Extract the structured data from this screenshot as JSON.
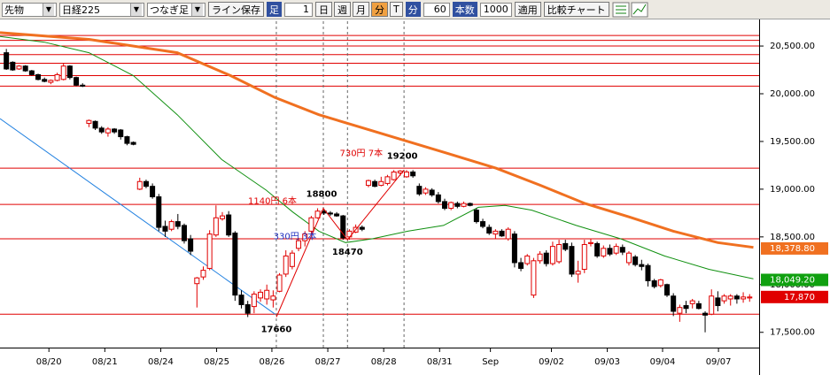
{
  "toolbar": {
    "instrument": "先物",
    "symbol": "日経225",
    "series_type": "つなぎ足",
    "save_button": "ライン保存",
    "bar_label": "足",
    "bar_count": 1,
    "periods": [
      "日",
      "週",
      "月",
      "分",
      "T"
    ],
    "active_period_index": 3,
    "unit_label": "分",
    "unit_value": 60,
    "count_label": "本数",
    "count_value": 1000,
    "apply_button": "適用",
    "compare_button": "比較チャート"
  },
  "chart": {
    "type": "candlestick",
    "up_color": "#e00000",
    "down_color": "#000000",
    "ylim": [
      17340,
      20760
    ],
    "yticks": [
      {
        "value": 20500,
        "label": "20,500.00"
      },
      {
        "value": 20000,
        "label": "20,000.00"
      },
      {
        "value": 19500,
        "label": "19,500.00"
      },
      {
        "value": 19000,
        "label": "19,000.00"
      },
      {
        "value": 18500,
        "label": "18,500.00"
      },
      {
        "value": 18000,
        "label": "18,000.00"
      },
      {
        "value": 17500,
        "label": "17,500.00"
      }
    ],
    "xlim": [
      -1,
      118.5
    ],
    "xticks": [
      {
        "value": 6.7,
        "label": "08/20"
      },
      {
        "value": 15.5,
        "label": "08/21"
      },
      {
        "value": 24.3,
        "label": "08/24"
      },
      {
        "value": 33.1,
        "label": "08/25"
      },
      {
        "value": 41.8,
        "label": "08/26"
      },
      {
        "value": 50.6,
        "label": "08/27"
      },
      {
        "value": 59.4,
        "label": "08/28"
      },
      {
        "value": 68.2,
        "label": "08/31"
      },
      {
        "value": 76.2,
        "label": "Sep"
      },
      {
        "value": 85.8,
        "label": "09/02"
      },
      {
        "value": 94.6,
        "label": "09/03"
      },
      {
        "value": 103.3,
        "label": "09/04"
      },
      {
        "value": 112.1,
        "label": "09/07"
      }
    ],
    "hlines": {
      "color": "#e00000",
      "values": [
        20610,
        20560,
        20500,
        20410,
        20320,
        20190,
        20080,
        19220,
        18840,
        18480,
        17690
      ]
    },
    "candles": [
      [
        20430,
        20470,
        20250,
        20260
      ],
      [
        20330,
        20340,
        20240,
        20250
      ],
      [
        20260,
        20300,
        20250,
        20290
      ],
      [
        20290,
        20300,
        20230,
        20240
      ],
      [
        20240,
        20250,
        20190,
        20200
      ],
      [
        20200,
        20210,
        20140,
        20150
      ],
      [
        20150,
        20170,
        20120,
        20130
      ],
      [
        20120,
        20150,
        20100,
        20140
      ],
      [
        20140,
        20220,
        20130,
        20200
      ],
      [
        20150,
        20320,
        20140,
        20290
      ],
      [
        20290,
        20300,
        20150,
        20170
      ],
      [
        20170,
        20180,
        20080,
        20090
      ],
      [
        20090,
        20110,
        20070,
        20080
      ],
      [
        19690,
        19730,
        19650,
        19720
      ],
      [
        19710,
        19720,
        19620,
        19640
      ],
      [
        19640,
        19660,
        19580,
        19600
      ],
      [
        19590,
        19650,
        19550,
        19630
      ],
      [
        19630,
        19640,
        19580,
        19600
      ],
      [
        19620,
        19630,
        19520,
        19550
      ],
      [
        19550,
        19560,
        19460,
        19480
      ],
      [
        19490,
        19500,
        19460,
        19470
      ],
      [
        19000,
        19120,
        18990,
        19080
      ],
      [
        19080,
        19100,
        19010,
        19030
      ],
      [
        19030,
        19060,
        18900,
        18920
      ],
      [
        18920,
        18950,
        18560,
        18600
      ],
      [
        18610,
        18670,
        18500,
        18560
      ],
      [
        18580,
        18680,
        18560,
        18660
      ],
      [
        18660,
        18740,
        18580,
        18610
      ],
      [
        18620,
        18640,
        18430,
        18460
      ],
      [
        18480,
        18520,
        18310,
        18350
      ],
      [
        18010,
        18080,
        17760,
        18070
      ],
      [
        18080,
        18190,
        18050,
        18150
      ],
      [
        18170,
        18570,
        18150,
        18530
      ],
      [
        18520,
        18830,
        18500,
        18700
      ],
      [
        18690,
        18760,
        18670,
        18720
      ],
      [
        18730,
        18770,
        18500,
        18520
      ],
      [
        18540,
        18560,
        17830,
        17890
      ],
      [
        17890,
        17940,
        17750,
        17790
      ],
      [
        17790,
        17830,
        17660,
        17700
      ],
      [
        17770,
        17930,
        17700,
        17900
      ],
      [
        17860,
        17950,
        17820,
        17920
      ],
      [
        17850,
        18000,
        17790,
        17940
      ],
      [
        17840,
        17940,
        17760,
        17880
      ],
      [
        17930,
        18120,
        17920,
        18100
      ],
      [
        18110,
        18360,
        18080,
        18300
      ],
      [
        18190,
        18360,
        18160,
        18330
      ],
      [
        18380,
        18490,
        18350,
        18460
      ],
      [
        18460,
        18560,
        18400,
        18530
      ],
      [
        18560,
        18720,
        18520,
        18700
      ],
      [
        18700,
        18800,
        18690,
        18770
      ],
      [
        18770,
        18790,
        18730,
        18750
      ],
      [
        18750,
        18770,
        18720,
        18740
      ],
      [
        18740,
        18760,
        18710,
        18720
      ],
      [
        18720,
        18730,
        18470,
        18490
      ],
      [
        18500,
        18580,
        18470,
        18560
      ],
      [
        18550,
        18630,
        18540,
        18600
      ],
      [
        18600,
        18620,
        18560,
        18580
      ],
      [
        19040,
        19100,
        19020,
        19090
      ],
      [
        19080,
        19100,
        19020,
        19030
      ],
      [
        19040,
        19130,
        19030,
        19080
      ],
      [
        19060,
        19150,
        19040,
        19130
      ],
      [
        19100,
        19200,
        19090,
        19180
      ],
      [
        19170,
        19200,
        19140,
        19190
      ],
      [
        19130,
        19200,
        19120,
        19180
      ],
      [
        19180,
        19200,
        19120,
        19140
      ],
      [
        19030,
        19060,
        18930,
        18950
      ],
      [
        18960,
        19020,
        18940,
        19000
      ],
      [
        18990,
        19010,
        18920,
        18940
      ],
      [
        18940,
        18970,
        18850,
        18870
      ],
      [
        18870,
        18900,
        18780,
        18800
      ],
      [
        18800,
        18870,
        18780,
        18860
      ],
      [
        18850,
        18870,
        18800,
        18820
      ],
      [
        18820,
        18870,
        18810,
        18850
      ],
      [
        18850,
        18860,
        18820,
        18830
      ],
      [
        18780,
        18800,
        18640,
        18660
      ],
      [
        18660,
        18690,
        18590,
        18610
      ],
      [
        18600,
        18630,
        18520,
        18540
      ],
      [
        18530,
        18580,
        18480,
        18560
      ],
      [
        18560,
        18580,
        18500,
        18510
      ],
      [
        18480,
        18600,
        18460,
        18580
      ],
      [
        18530,
        18560,
        18180,
        18230
      ],
      [
        18230,
        18280,
        18140,
        18170
      ],
      [
        18220,
        18320,
        18200,
        18300
      ],
      [
        17890,
        18280,
        17860,
        18250
      ],
      [
        18250,
        18350,
        18220,
        18320
      ],
      [
        18330,
        18360,
        18190,
        18220
      ],
      [
        18220,
        18450,
        18200,
        18400
      ],
      [
        18240,
        18470,
        18220,
        18420
      ],
      [
        18430,
        18470,
        18350,
        18370
      ],
      [
        18400,
        18440,
        18080,
        18110
      ],
      [
        18110,
        18250,
        18020,
        18140
      ],
      [
        18160,
        18470,
        18120,
        18420
      ],
      [
        18430,
        18480,
        18400,
        18440
      ],
      [
        18430,
        18450,
        18280,
        18300
      ],
      [
        18300,
        18410,
        18280,
        18380
      ],
      [
        18380,
        18420,
        18300,
        18320
      ],
      [
        18330,
        18430,
        18310,
        18400
      ],
      [
        18390,
        18420,
        18310,
        18340
      ],
      [
        18230,
        18350,
        18200,
        18330
      ],
      [
        18290,
        18310,
        18190,
        18210
      ],
      [
        18210,
        18260,
        18150,
        18190
      ],
      [
        18200,
        18220,
        17980,
        18040
      ],
      [
        18040,
        18060,
        17960,
        17980
      ],
      [
        17990,
        18060,
        17970,
        18050
      ],
      [
        18000,
        18010,
        17870,
        17890
      ],
      [
        17880,
        17910,
        17670,
        17720
      ],
      [
        17700,
        17790,
        17610,
        17760
      ],
      [
        17780,
        17830,
        17700,
        17750
      ],
      [
        17800,
        17850,
        17750,
        17830
      ],
      [
        17800,
        17830,
        17740,
        17750
      ],
      [
        17700,
        17720,
        17500,
        17680
      ],
      [
        17690,
        17950,
        17680,
        17880
      ],
      [
        17860,
        17930,
        17720,
        17780
      ],
      [
        17830,
        17900,
        17800,
        17880
      ],
      [
        17850,
        17900,
        17780,
        17880
      ],
      [
        17880,
        17900,
        17800,
        17850
      ],
      [
        17850,
        17920,
        17810,
        17870
      ],
      [
        17860,
        17900,
        17820,
        17870
      ]
    ],
    "lines": [
      {
        "color": "#f07020",
        "width": 3,
        "x": [
          -1,
          13,
          26.9,
          35.3,
          42.3,
          49.2,
          56.2,
          63.2,
          70.2,
          77.1,
          84.1,
          91.1,
          98,
          105,
          112,
          117.6
        ],
        "values": [
          20640,
          20570,
          20430,
          20190,
          19960,
          19780,
          19640,
          19500,
          19360,
          19220,
          19040,
          18850,
          18710,
          18560,
          18440,
          18390
        ]
      },
      {
        "color": "#109010",
        "width": 1,
        "x": [
          -1,
          6,
          13,
          20,
          26.9,
          33.9,
          40.9,
          45.1,
          49.2,
          53.4,
          57.6,
          63.2,
          68.8,
          74.3,
          78.5,
          82.7,
          89.7,
          96.7,
          103.6,
          110.6,
          117.6
        ],
        "values": [
          20600,
          20540,
          20430,
          20190,
          19780,
          19310,
          18990,
          18760,
          18560,
          18440,
          18480,
          18560,
          18620,
          18810,
          18830,
          18780,
          18620,
          18480,
          18300,
          18160,
          18060
        ]
      },
      {
        "color": "#2080e0",
        "width": 1,
        "x": [
          -1,
          42.3
        ],
        "values": [
          19740,
          17690
        ]
      }
    ],
    "price_tags": [
      {
        "value": 18378.8,
        "label": "18,378.80",
        "color": "#f07020"
      },
      {
        "value": 18049.2,
        "label": "18,049.20",
        "color": "#10a010"
      },
      {
        "value": 17870,
        "label": "17,870",
        "color": "#e00000"
      }
    ],
    "zigzag": {
      "color": "#e00000",
      "x": [
        42.5,
        49.9,
        53.7,
        62.6
      ],
      "values": [
        17660,
        18800,
        18470,
        19200
      ],
      "segments": [
        {
          "label": "1140円 6本",
          "color": "#e00000"
        },
        {
          "label": "330円 3本",
          "color": "#2030c0"
        },
        {
          "label": "730円 7本",
          "color": "#e00000"
        }
      ]
    }
  }
}
